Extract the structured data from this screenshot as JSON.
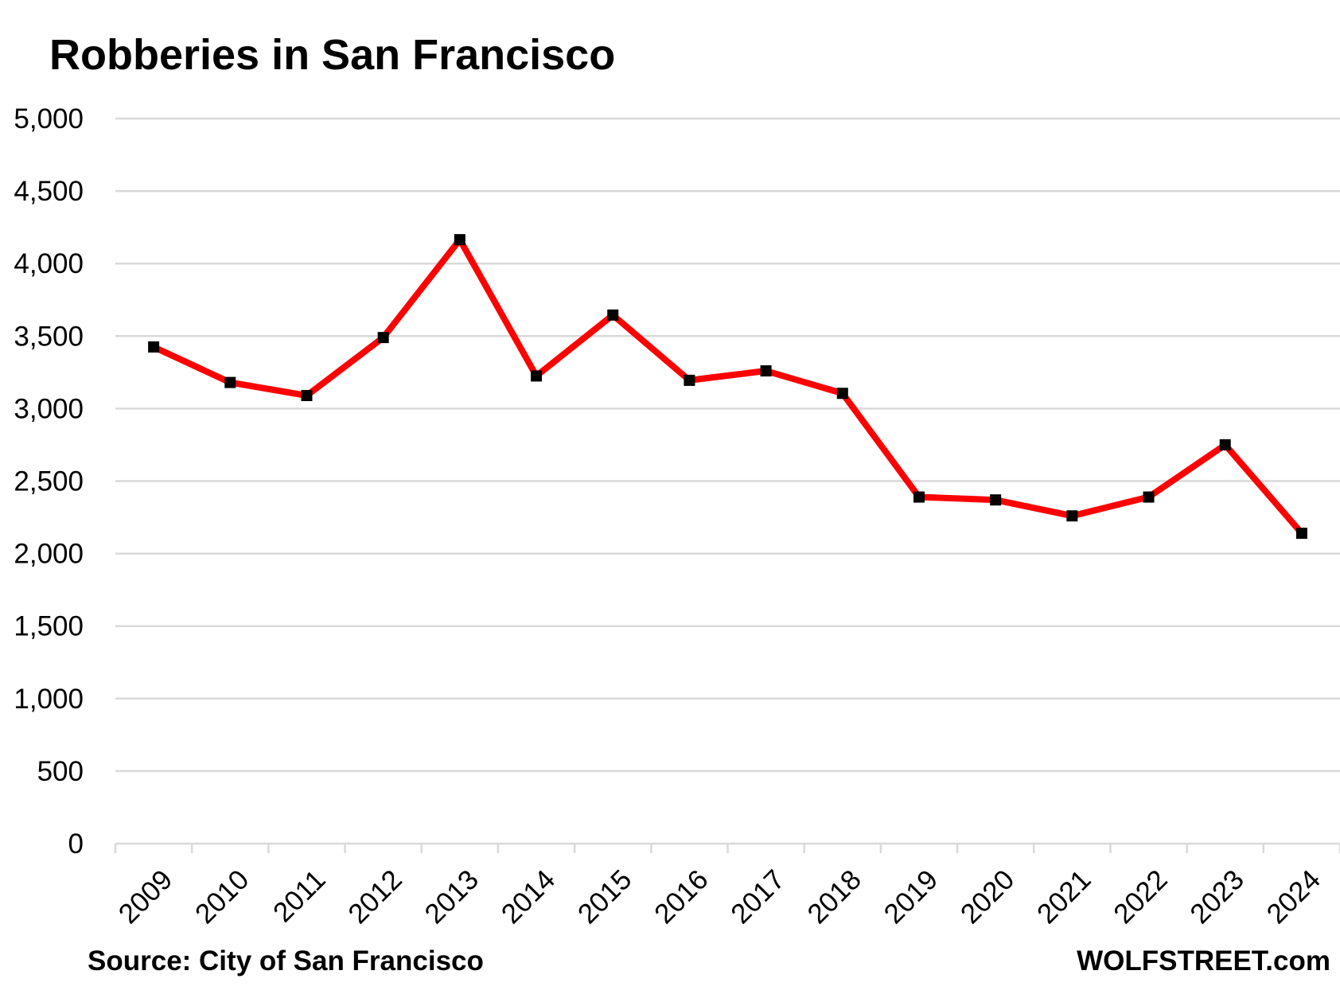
{
  "chart_data": {
    "type": "line",
    "title": "Robberies in San Francisco",
    "categories": [
      "2009",
      "2010",
      "2011",
      "2012",
      "2013",
      "2014",
      "2015",
      "2016",
      "2017",
      "2018",
      "2019",
      "2020",
      "2021",
      "2022",
      "2023",
      "2024"
    ],
    "series": [
      {
        "values": [
          3425,
          3180,
          3090,
          3490,
          4165,
          3225,
          3645,
          3195,
          3260,
          3105,
          2390,
          2370,
          2260,
          2390,
          2750,
          2140
        ]
      }
    ],
    "ylim": [
      0,
      5000
    ],
    "yticks": [
      0,
      500,
      1000,
      1500,
      2000,
      2500,
      3000,
      3500,
      4000,
      4500,
      5000
    ],
    "ytick_labels": [
      "0",
      "500",
      "1,000",
      "1,500",
      "2,000",
      "2,500",
      "3,000",
      "3,500",
      "4,000",
      "4,500",
      "5,000"
    ],
    "grid": "horizontal",
    "legend": "none",
    "line_color": "#ff0000",
    "marker_color": "#000000",
    "marker": "square"
  },
  "footer": {
    "source": "Source: City of San Francisco",
    "brand": "WOLFSTREET.com"
  }
}
